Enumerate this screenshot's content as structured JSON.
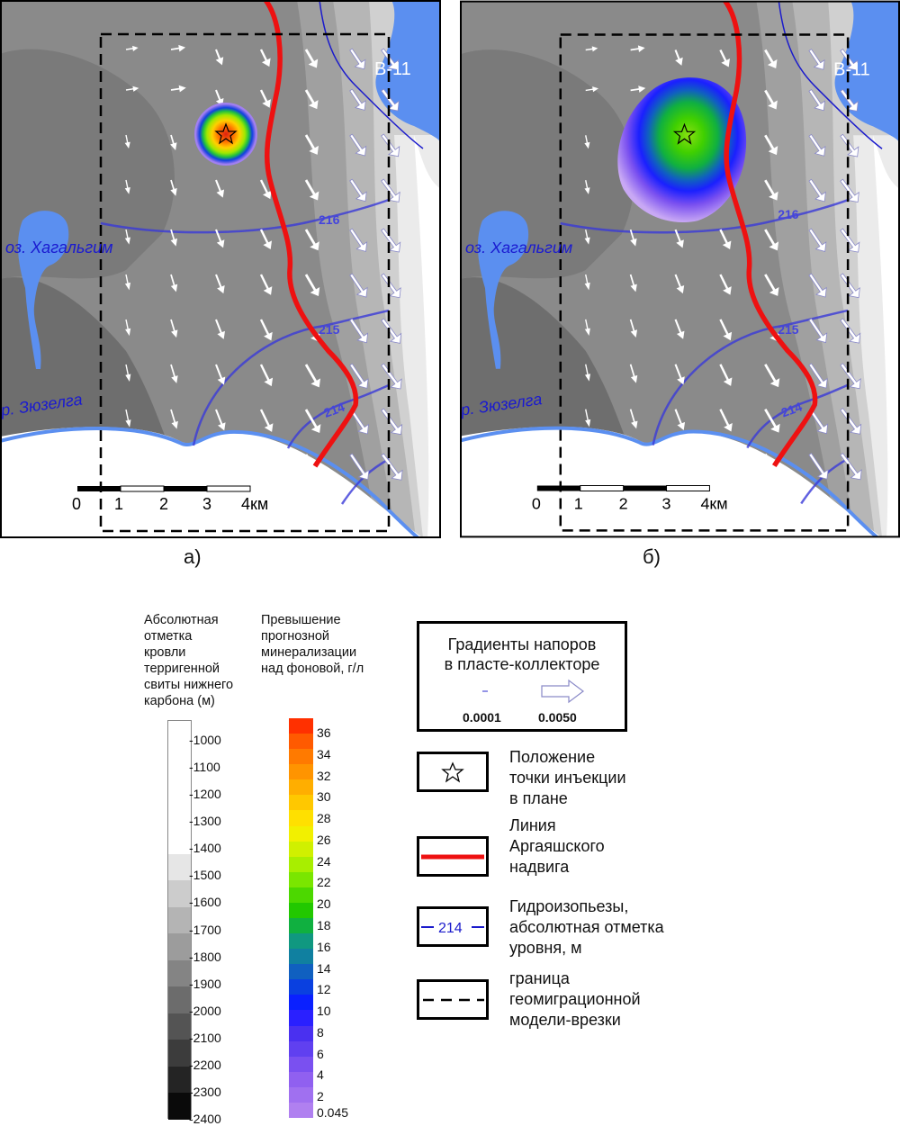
{
  "panels": [
    {
      "id": "a",
      "caption": "а)",
      "labels": {
        "lake": "оз. Хагальгим",
        "river": "р. Зюзелга",
        "reservoir": "В-11",
        "iso216": "216",
        "iso215": "215",
        "iso214": "214"
      },
      "scalebar": {
        "ticks": [
          "0",
          "1",
          "2",
          "3",
          "4км"
        ]
      },
      "plume": {
        "shape": "circle",
        "peak_color": "#e02010"
      }
    },
    {
      "id": "b",
      "caption": "б)",
      "labels": {
        "lake": "оз. Хагальгим",
        "river": "р. Зюзелга",
        "reservoir": "В-11",
        "iso216": "216",
        "iso215": "215",
        "iso214": "214"
      },
      "scalebar": {
        "ticks": [
          "0",
          "1",
          "2",
          "3",
          "4км"
        ]
      },
      "plume": {
        "shape": "ellipse",
        "peak_color": "#88e010"
      }
    }
  ],
  "legend": {
    "elevation": {
      "title": [
        "Абсолютная",
        "отметка",
        "кровли",
        "терригенной",
        "свиты нижнего",
        "карбона (м)"
      ],
      "levels": [
        "-1000",
        "-1100",
        "-1200",
        "-1300",
        "-1400",
        "-1500",
        "-1600",
        "-1700",
        "-1800",
        "-1900",
        "-2000",
        "-2100",
        "-2200",
        "-2300",
        "-2400"
      ],
      "colors": [
        "#ffffff",
        "#ffffff",
        "#ffffff",
        "#ffffff",
        "#ffffff",
        "#e6e6e6",
        "#cccccc",
        "#b4b4b4",
        "#9c9c9c",
        "#848484",
        "#6c6c6c",
        "#545454",
        "#3c3c3c",
        "#242424",
        "#0a0a0a"
      ]
    },
    "mineralization": {
      "title": [
        "Превышение",
        "прогнозной",
        "минерализации",
        "над фоновой, г/л"
      ],
      "ticks": [
        "36",
        "34",
        "32",
        "30",
        "28",
        "26",
        "24",
        "22",
        "20",
        "18",
        "16",
        "14",
        "12",
        "10",
        "8",
        "6",
        "4",
        "2",
        "0.045"
      ],
      "colors": [
        "#ff3000",
        "#ff5a00",
        "#ff7a00",
        "#ff9400",
        "#ffae00",
        "#ffc800",
        "#ffe000",
        "#f2f000",
        "#d0f000",
        "#a8ee00",
        "#7ae600",
        "#4cd800",
        "#22c800",
        "#10b040",
        "#109880",
        "#1080a0",
        "#1060c0",
        "#0a40e0",
        "#0a20ff",
        "#2a20ff",
        "#4a30f0",
        "#6040f0",
        "#7a50f0",
        "#9060f0",
        "#a070f0",
        "#b080f0"
      ]
    },
    "gradients": {
      "title": [
        "Градиенты напоров",
        "в пласте-коллекторе"
      ],
      "min_value": "0.0001",
      "max_value": "0.0050"
    },
    "items": [
      {
        "key": "injection",
        "label": [
          "Положение",
          "точки инъекции",
          "в плане"
        ]
      },
      {
        "key": "thrust",
        "label": [
          "Линия",
          "Аргаяшского",
          "надвига"
        ],
        "color": "#ee1111"
      },
      {
        "key": "isoline",
        "sample": "214",
        "label": [
          "Гидроизопьезы,",
          "абсолютная отметка",
          "уровня, м"
        ],
        "color": "#1a1acc"
      },
      {
        "key": "boundary",
        "label": [
          "граница",
          "геомиграционной",
          "модели-врезки"
        ]
      }
    ]
  }
}
